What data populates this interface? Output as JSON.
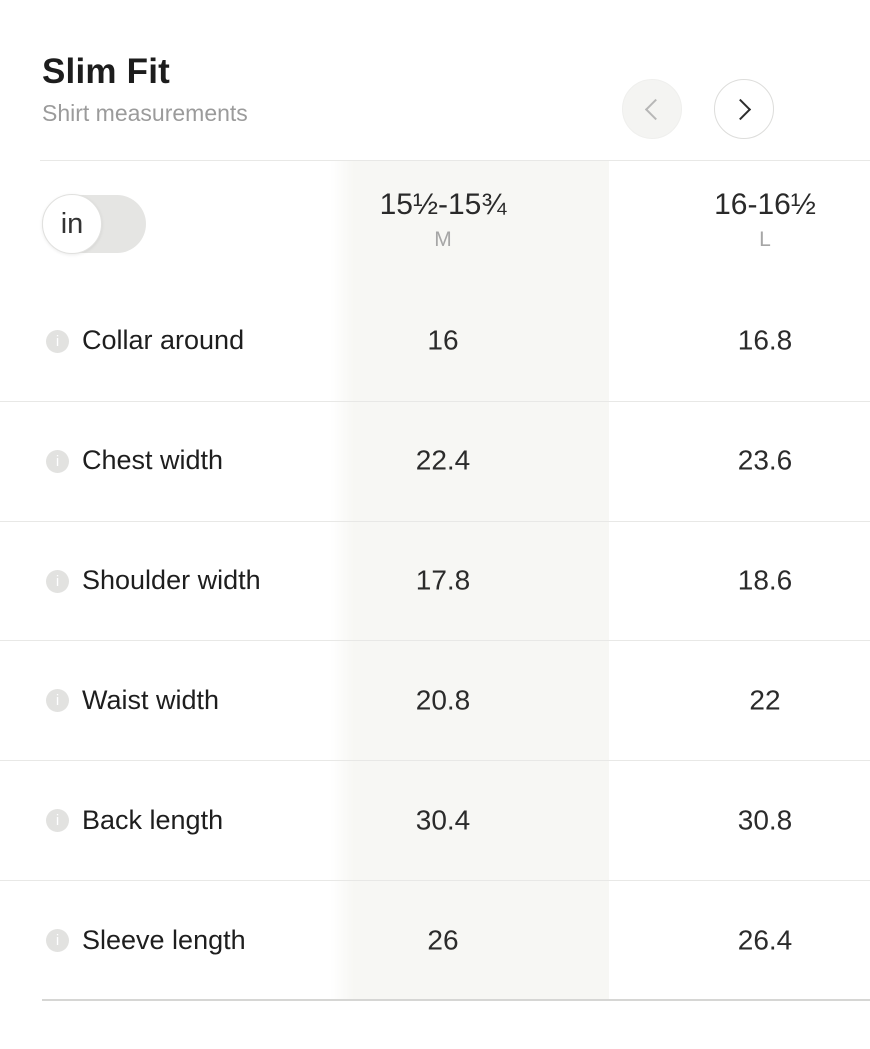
{
  "header": {
    "title": "Slim Fit",
    "subtitle": "Shirt measurements"
  },
  "nav": {
    "prev": {
      "icon": "chevron-left",
      "enabled": false
    },
    "next": {
      "icon": "chevron-right",
      "enabled": true
    }
  },
  "unit_toggle": {
    "value": "in",
    "position": "left"
  },
  "icons": {
    "info_glyph": "i"
  },
  "table": {
    "columns": [
      {
        "size_range": "15½-15¾",
        "size_label": "M",
        "highlighted": true
      },
      {
        "size_range": "16-16½",
        "size_label": "L",
        "highlighted": false
      }
    ],
    "rows": [
      {
        "label": "Collar around",
        "values": [
          16,
          16.8
        ]
      },
      {
        "label": "Chest width",
        "values": [
          22.4,
          23.6
        ]
      },
      {
        "label": "Shoulder width",
        "values": [
          17.8,
          18.6
        ]
      },
      {
        "label": "Waist width",
        "values": [
          20.8,
          22
        ]
      },
      {
        "label": "Back length",
        "values": [
          30.4,
          30.8
        ]
      },
      {
        "label": "Sleeve length",
        "values": [
          26,
          26.4
        ]
      }
    ]
  },
  "colors": {
    "highlight_column": "#f7f7f4",
    "divider": "#e8e8e6",
    "bottom_border": "#d6d6d4",
    "text_primary": "#1e1e1e",
    "text_secondary": "#9b9b9b",
    "toggle_track": "#e5e5e3",
    "info_icon": "#e2e2e0"
  }
}
